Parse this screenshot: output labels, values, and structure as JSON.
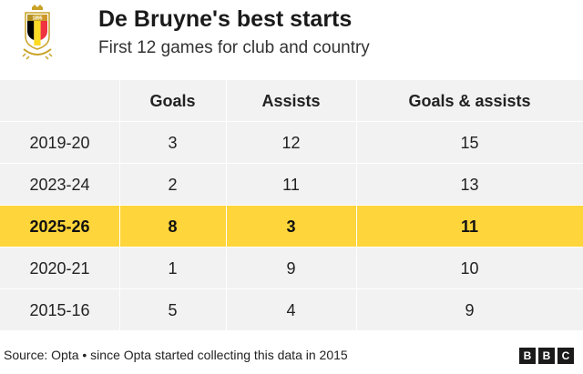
{
  "title": "De Bruyne's best starts",
  "subtitle": "First 12 games for club and country",
  "crest": {
    "year_text": "1895",
    "colors": [
      "#000000",
      "#fdda24",
      "#ef3340",
      "#c9a227"
    ]
  },
  "chart_data": {
    "type": "table",
    "columns": [
      "",
      "Goals",
      "Assists",
      "Goals & assists"
    ],
    "rows": [
      {
        "season": "2019-20",
        "goals": "3",
        "assists": "12",
        "total": "15",
        "highlight": false
      },
      {
        "season": "2023-24",
        "goals": "2",
        "assists": "11",
        "total": "13",
        "highlight": false
      },
      {
        "season": "2025-26",
        "goals": "8",
        "assists": "3",
        "total": "11",
        "highlight": true
      },
      {
        "season": "2020-21",
        "goals": "1",
        "assists": "9",
        "total": "10",
        "highlight": false
      },
      {
        "season": "2015-16",
        "goals": "5",
        "assists": "4",
        "total": "9",
        "highlight": false
      }
    ],
    "highlight_color": "#fed53a"
  },
  "footer": {
    "source": "Source: Opta • since Opta started collecting this data in 2015",
    "logo_letters": [
      "B",
      "B",
      "C"
    ]
  }
}
